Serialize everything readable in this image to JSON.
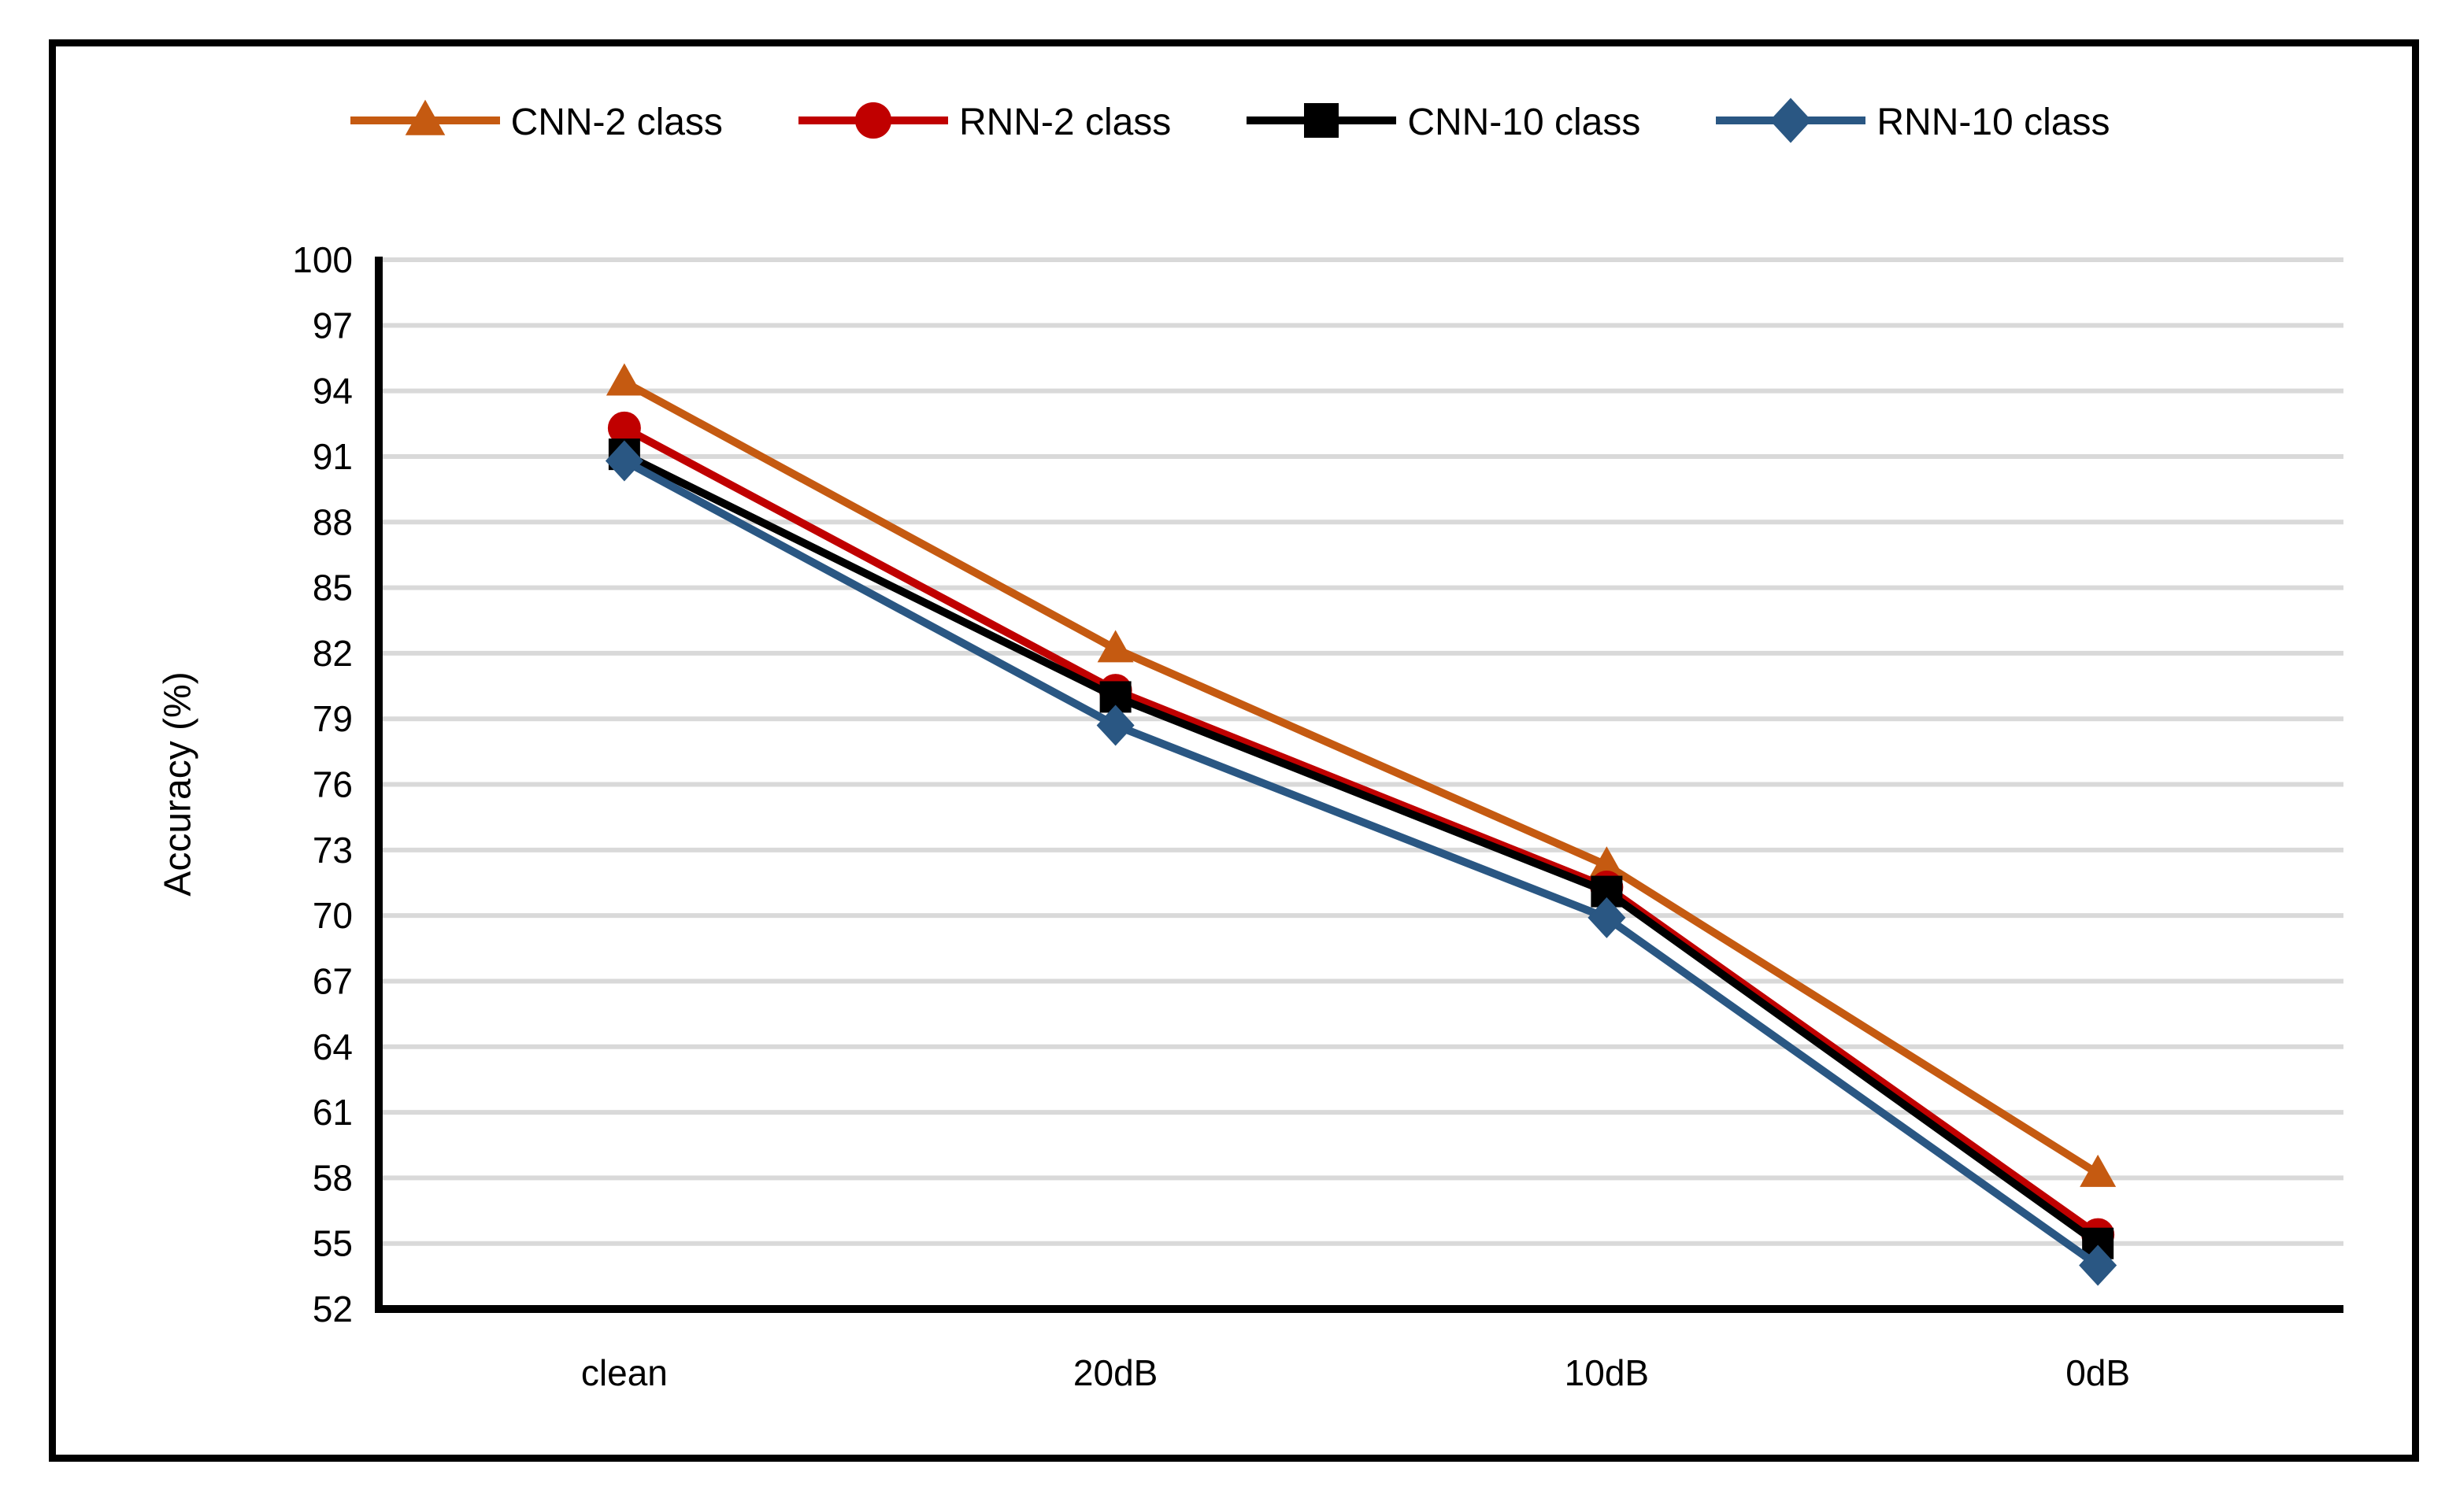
{
  "chart_data": {
    "type": "line",
    "categories": [
      "clean",
      "20dB",
      "10dB",
      "0dB"
    ],
    "series": [
      {
        "name": "CNN-2 class",
        "marker": "triangle",
        "color": "#C55A11",
        "values": [
          94.4,
          82.2,
          72.3,
          58.2
        ]
      },
      {
        "name": "RNN-2 class",
        "marker": "circle",
        "color": "#C00000",
        "values": [
          92.3,
          80.3,
          71.3,
          55.4
        ]
      },
      {
        "name": "CNN-10 class",
        "marker": "square",
        "color": "#000000",
        "values": [
          91.1,
          80.0,
          71.1,
          55.0
        ]
      },
      {
        "name": "RNN-10 class",
        "marker": "diamond",
        "color": "#2A5783",
        "values": [
          90.8,
          78.7,
          69.9,
          54.0
        ]
      }
    ],
    "xlabel": "",
    "ylabel": "Accuracy (%)",
    "ylim": [
      52,
      100
    ],
    "ytick_step": 3,
    "yticks": [
      100,
      97,
      94,
      91,
      88,
      85,
      82,
      79,
      76,
      73,
      70,
      67,
      64,
      61,
      58,
      55,
      52
    ],
    "grid": true,
    "legend_position": "top",
    "gridline_color": "#D9D9D9",
    "axis_color": "#000000"
  }
}
